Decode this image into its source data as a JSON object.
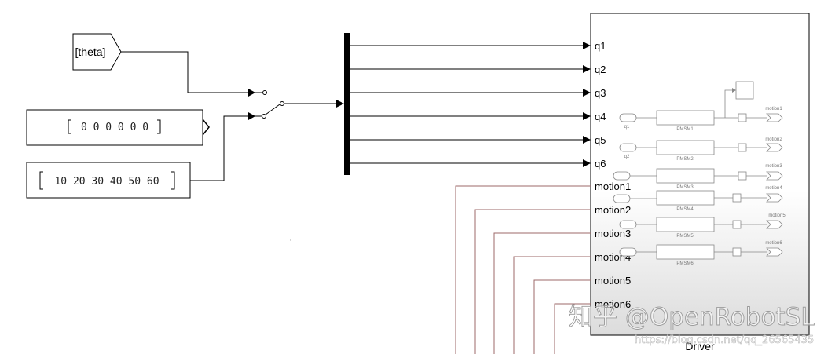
{
  "from_tag": {
    "label": "[theta]"
  },
  "constant1": {
    "value": "0 0 0 0 0 0"
  },
  "constant2": {
    "value": "10 20 30 40 50 60"
  },
  "driver": {
    "title": "Driver",
    "inputs": [
      "q1",
      "q2",
      "q3",
      "q4",
      "q5",
      "q6"
    ],
    "outputs": [
      "motion1",
      "motion2",
      "motion3",
      "motion4",
      "motion5",
      "motion6"
    ],
    "inner": {
      "in_labels": [
        "q1",
        "q2",
        "",
        "",
        "",
        ""
      ],
      "pmsm_labels": [
        "PMSM1",
        "PMSM2",
        "PMSM3",
        "PMSM4",
        "PMSM5",
        "PMSM6"
      ],
      "out_labels": [
        "motion1",
        "motion2",
        "motion3",
        "motion4",
        "motion5",
        "motion6"
      ]
    }
  },
  "watermark": {
    "main": "知乎 @OpenRobotSL",
    "url": "https://blog.csdn.net/qq_26565435"
  }
}
